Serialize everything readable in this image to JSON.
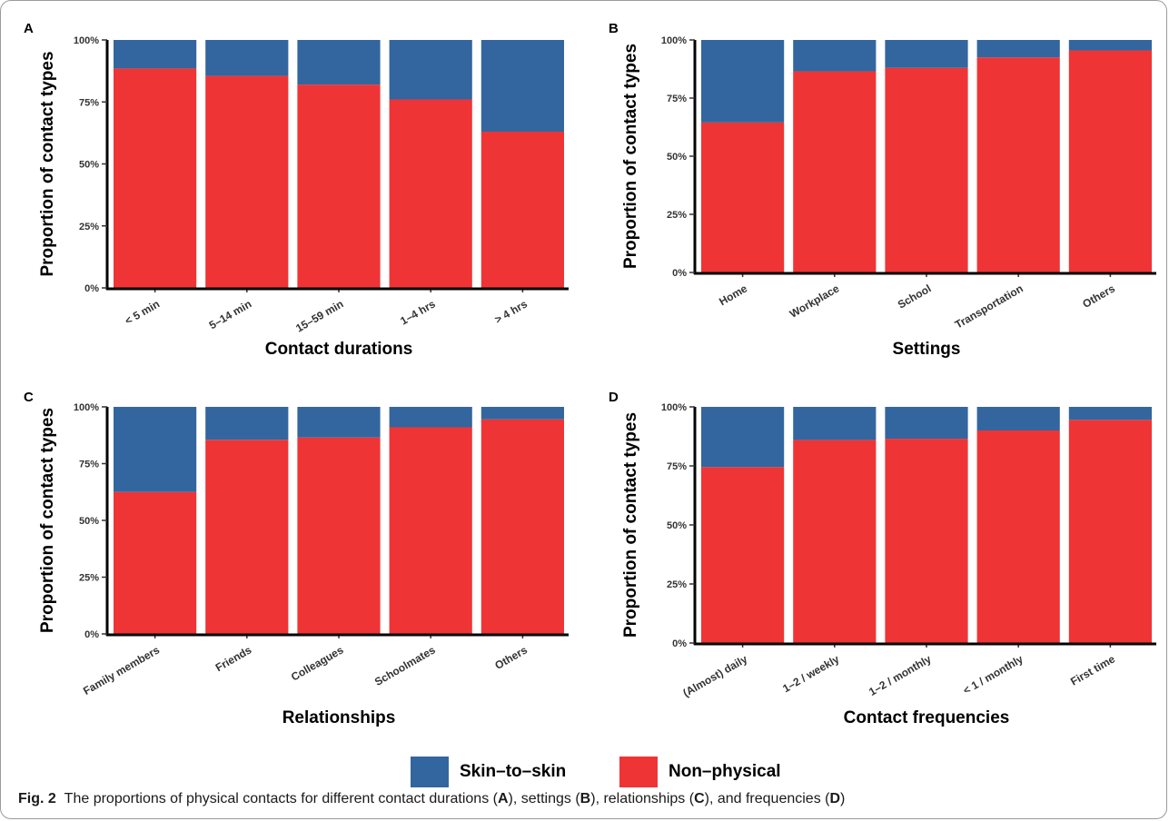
{
  "colors": {
    "skin": "#33669E",
    "nonphysical": "#EF3436"
  },
  "legend": {
    "skin_label": "Skin–to–skin",
    "nonphysical_label": "Non–physical"
  },
  "caption": {
    "fig": "Fig. 2",
    "pre": "The proportions of physical contacts for different contact durations (",
    "A": "A",
    "mid1": "), settings (",
    "B": "B",
    "mid2": "), relationships (",
    "C": "C",
    "mid3": "), and frequencies (",
    "D": "D",
    "post": ")"
  },
  "chart_data": [
    {
      "panel": "A",
      "type": "bar",
      "stacked": true,
      "xlabel": "Contact durations",
      "ylabel": "Proportion of contact types",
      "yticks": [
        "0%",
        "25%",
        "50%",
        "75%",
        "100%"
      ],
      "ylim": [
        0,
        100
      ],
      "categories": [
        "< 5 min",
        "5–14 min",
        "15–59 min",
        "1–4 hrs",
        "> 4 hrs"
      ],
      "series": [
        {
          "name": "Non–physical",
          "values": [
            88.5,
            85.5,
            82,
            76,
            63
          ]
        },
        {
          "name": "Skin–to–skin",
          "values": [
            11.5,
            14.5,
            18,
            24,
            37
          ]
        }
      ]
    },
    {
      "panel": "B",
      "type": "bar",
      "stacked": true,
      "xlabel": "Settings",
      "ylabel": "Proportion of contact types",
      "yticks": [
        "0%",
        "25%",
        "50%",
        "75%",
        "100%"
      ],
      "ylim": [
        0,
        100
      ],
      "categories": [
        "Home",
        "Workplace",
        "School",
        "Transportation",
        "Others"
      ],
      "series": [
        {
          "name": "Non–physical",
          "values": [
            64.5,
            86.5,
            88,
            92.5,
            95.5
          ]
        },
        {
          "name": "Skin–to–skin",
          "values": [
            35.5,
            13.5,
            12,
            7.5,
            4.5
          ]
        }
      ]
    },
    {
      "panel": "C",
      "type": "bar",
      "stacked": true,
      "xlabel": "Relationships",
      "ylabel": "Proportion of contact types",
      "yticks": [
        "0%",
        "25%",
        "50%",
        "75%",
        "100%"
      ],
      "ylim": [
        0,
        100
      ],
      "categories": [
        "Family members",
        "Friends",
        "Colleagues",
        "Schoolmates",
        "Others"
      ],
      "series": [
        {
          "name": "Non–physical",
          "values": [
            62.5,
            85.5,
            86.5,
            91,
            94.5
          ]
        },
        {
          "name": "Skin–to–skin",
          "values": [
            37.5,
            14.5,
            13.5,
            9,
            5.5
          ]
        }
      ]
    },
    {
      "panel": "D",
      "type": "bar",
      "stacked": true,
      "xlabel": "Contact frequencies",
      "ylabel": "Proportion of contact types",
      "yticks": [
        "0%",
        "25%",
        "50%",
        "75%",
        "100%"
      ],
      "ylim": [
        0,
        100
      ],
      "categories": [
        "(Almost) daily",
        "1–2 / weekly",
        "1–2 / monthly",
        "< 1 / monthly",
        "First time"
      ],
      "series": [
        {
          "name": "Non–physical",
          "values": [
            74.5,
            86,
            86.5,
            90,
            94.5
          ]
        },
        {
          "name": "Skin–to–skin",
          "values": [
            25.5,
            14,
            13.5,
            10,
            5.5
          ]
        }
      ]
    }
  ]
}
